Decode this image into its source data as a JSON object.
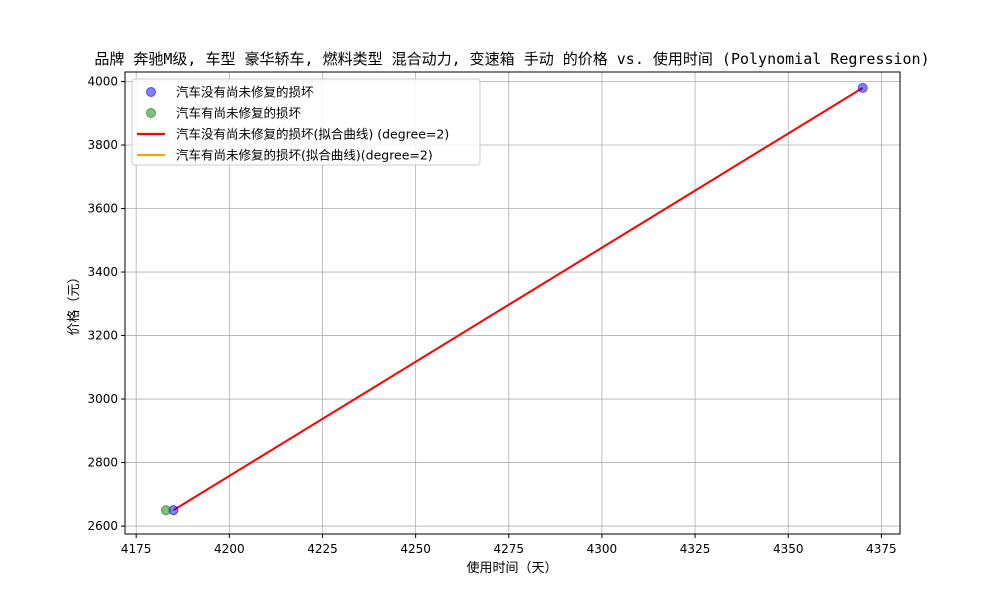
{
  "chart_data": {
    "type": "scatter",
    "title": "品牌 奔驰M级, 车型 豪华轿车, 燃料类型 混合动力, 变速箱 手动 的价格 vs. 使用时间 (Polynomial Regression)",
    "xlabel": "使用时间（天）",
    "ylabel": "价格（元）",
    "xlim": [
      4172,
      4380
    ],
    "ylim": [
      2575,
      4030
    ],
    "xticks": [
      4175,
      4200,
      4225,
      4250,
      4275,
      4300,
      4325,
      4350,
      4375
    ],
    "yticks": [
      2600,
      2800,
      3000,
      3200,
      3400,
      3600,
      3800,
      4000
    ],
    "grid": true,
    "legend_position": "upper left",
    "series": [
      {
        "name": "汽车没有尚未修复的损坏",
        "kind": "scatter",
        "color": "#0000ff",
        "points": [
          [
            4185,
            2650
          ],
          [
            4370,
            3980
          ]
        ]
      },
      {
        "name": "汽车有尚未修复的损坏",
        "kind": "scatter",
        "color": "#008000",
        "points": [
          [
            4183,
            2650
          ]
        ]
      },
      {
        "name": "汽车没有尚未修复的损坏(拟合曲线) (degree=2)",
        "kind": "line",
        "color": "#ff0000",
        "points": [
          [
            4185,
            2650
          ],
          [
            4370,
            3980
          ]
        ]
      },
      {
        "name": "汽车有尚未修复的损坏(拟合曲线)(degree=2)",
        "kind": "line",
        "color": "#ffa500",
        "points": []
      }
    ]
  }
}
